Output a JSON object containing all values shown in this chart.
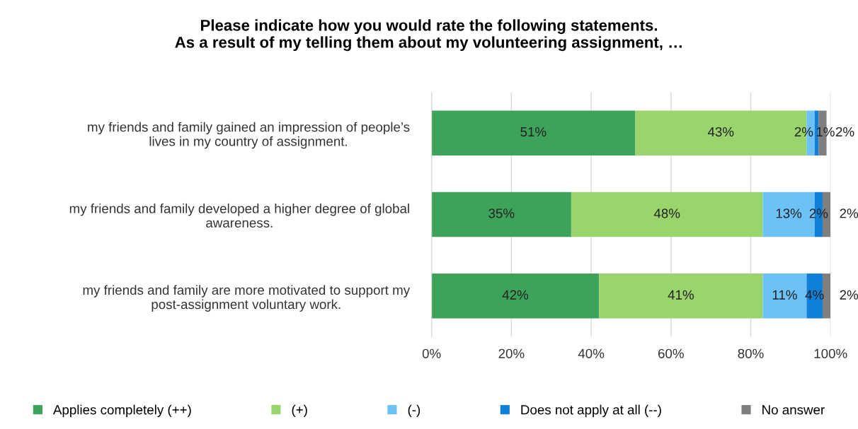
{
  "chart_data": {
    "type": "bar",
    "orientation": "horizontal",
    "stacked": true,
    "title": "Please indicate how you would rate the following statements.\nAs a result of my telling them about my volunteering assignment, …",
    "categories": [
      "my friends and family gained an impression of people’s\nlives in my country of assignment.",
      "my friends and family developed a higher degree of global\nawareness.",
      "my friends and family are more motivated to support my\npost-assignment voluntary work."
    ],
    "series": [
      {
        "name": "Applies completely (++)",
        "color": "#3ea35a",
        "values": [
          51,
          35,
          42
        ],
        "value_labels": [
          "51%",
          "35%",
          "42%"
        ]
      },
      {
        "name": "(+)",
        "color": "#99d46c",
        "values": [
          43,
          48,
          41
        ],
        "value_labels": [
          "43%",
          "48%",
          "41%"
        ]
      },
      {
        "name": "(-)",
        "color": "#6cc1f7",
        "values": [
          2,
          13,
          11
        ],
        "value_labels": [
          "2%",
          "13%",
          "11%"
        ]
      },
      {
        "name": "Does not apply at all (--)",
        "color": "#0f7fd8",
        "values": [
          1,
          2,
          4
        ],
        "value_labels": [
          "1%",
          "2%",
          "4%"
        ]
      },
      {
        "name": "No answer",
        "color": "#7f7f7f",
        "values": [
          2,
          2,
          2
        ],
        "value_labels": [
          "2%",
          "2%",
          "2%"
        ]
      }
    ],
    "xlim": [
      0,
      100
    ],
    "xticks": [
      {
        "value": 0,
        "label": "0%"
      },
      {
        "value": 20,
        "label": "20%"
      },
      {
        "value": 40,
        "label": "40%"
      },
      {
        "value": 60,
        "label": "60%"
      },
      {
        "value": 80,
        "label": "80%"
      },
      {
        "value": 100,
        "label": "100%"
      }
    ],
    "grid": "x",
    "legend": "bottom"
  }
}
